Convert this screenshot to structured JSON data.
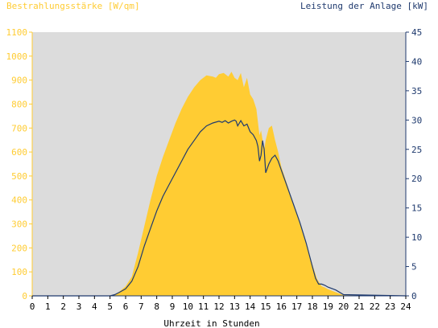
{
  "chart_data": {
    "type": "area",
    "title_left": "Bestrahlungsstärke [W/qm]",
    "title_right": "Leistung der Anlage [kW]",
    "xlabel": "Uhrzeit in Stunden",
    "xlim": [
      0,
      24
    ],
    "ylim_left": [
      0,
      1100
    ],
    "ylim_right": [
      0,
      45
    ],
    "x_ticks": [
      "0",
      "1",
      "2",
      "3",
      "4",
      "5",
      "6",
      "7",
      "8",
      "9",
      "10",
      "11",
      "12",
      "13",
      "14",
      "15",
      "16",
      "17",
      "18",
      "19",
      "20",
      "21",
      "22",
      "23",
      "24"
    ],
    "y_left_ticks": [
      "0",
      "100",
      "200",
      "300",
      "400",
      "500",
      "600",
      "700",
      "800",
      "900",
      "1000",
      "1100"
    ],
    "y_right_ticks": [
      "0",
      "5",
      "10",
      "15",
      "20",
      "25",
      "30",
      "35",
      "40",
      "45"
    ],
    "colors": {
      "plot_bg": "#dcdcdc",
      "irradiance": "#ffcc33",
      "power": "#1f3a6e",
      "left_axis": "#ffcc33",
      "right_axis": "#1f3a6e",
      "text": "#000000"
    },
    "series": [
      {
        "key": "irradiance",
        "axis": "left",
        "x": [
          0,
          5,
          5.3,
          5.6,
          6,
          6.4,
          6.8,
          7.2,
          7.6,
          8,
          8.4,
          8.8,
          9.2,
          9.6,
          10,
          10.4,
          10.8,
          11.2,
          11.6,
          11.8,
          12,
          12.3,
          12.6,
          12.8,
          13,
          13.2,
          13.4,
          13.6,
          13.8,
          14,
          14.2,
          14.4,
          14.6,
          14.7,
          14.9,
          15.0,
          15.2,
          15.4,
          15.6,
          15.8,
          16,
          16.4,
          16.8,
          17.2,
          17.6,
          18,
          18.3,
          18.6,
          18.8,
          19,
          19.5,
          20,
          24
        ],
        "values": [
          0,
          0,
          5,
          18,
          40,
          80,
          180,
          290,
          400,
          500,
          580,
          650,
          720,
          780,
          830,
          870,
          900,
          920,
          915,
          910,
          925,
          930,
          915,
          935,
          910,
          900,
          930,
          870,
          910,
          840,
          820,
          780,
          670,
          690,
          610,
          650,
          700,
          710,
          650,
          600,
          540,
          460,
          380,
          300,
          220,
          130,
          70,
          40,
          35,
          28,
          15,
          3,
          0
        ]
      },
      {
        "key": "power",
        "axis": "right",
        "x": [
          0,
          5,
          5.3,
          5.6,
          6,
          6.4,
          6.8,
          7.2,
          7.6,
          8,
          8.4,
          8.8,
          9.2,
          9.6,
          10,
          10.4,
          10.8,
          11.2,
          11.6,
          12,
          12.2,
          12.4,
          12.6,
          12.8,
          13,
          13.1,
          13.2,
          13.4,
          13.6,
          13.8,
          14,
          14.2,
          14.4,
          14.5,
          14.6,
          14.7,
          14.8,
          14.9,
          15.0,
          15.2,
          15.4,
          15.6,
          15.8,
          16,
          16.4,
          16.8,
          17.2,
          17.6,
          18,
          18.2,
          18.4,
          18.6,
          18.8,
          19,
          19.5,
          20,
          24
        ],
        "values": [
          0,
          0,
          0.2,
          0.6,
          1.2,
          2.5,
          5,
          8.5,
          11.5,
          14.5,
          17,
          19,
          21,
          23,
          25,
          26.5,
          28,
          29,
          29.5,
          29.8,
          29.6,
          29.9,
          29.5,
          29.8,
          30,
          29.8,
          29,
          29.9,
          29,
          29.3,
          28,
          27.5,
          26.5,
          25.5,
          23,
          24,
          26.5,
          25,
          21,
          22.5,
          23.5,
          24,
          23,
          21.5,
          18.5,
          15.5,
          12.5,
          9,
          5,
          3,
          2,
          2,
          1.8,
          1.5,
          1,
          0.2,
          0
        ]
      }
    ]
  }
}
